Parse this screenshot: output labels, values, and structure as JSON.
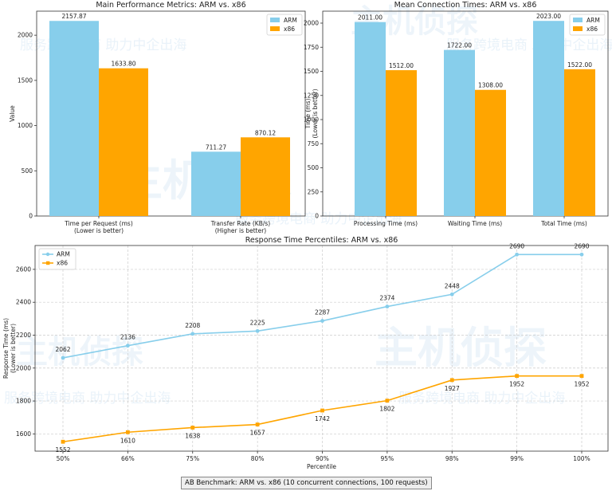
{
  "watermark": {
    "brand": "主机侦探",
    "slogan": "服务跨境电商 助力中企出海"
  },
  "footer_caption": "AB Benchmark: ARM vs. x86 (10 concurrent connections, 100 requests)",
  "colors": {
    "arm": "#87ceeb",
    "x86": "#ffa500"
  },
  "chart_data": [
    {
      "type": "bar",
      "title": "Main Performance Metrics: ARM vs. x86",
      "ylabel": "Value",
      "categories": [
        "Time per Request (ms)\n(Lower is better)",
        "Transfer Rate (KB/s)\n(Higher is better)"
      ],
      "series": [
        {
          "name": "ARM",
          "values": [
            2157.87,
            711.27
          ],
          "labels": [
            "2157.87",
            "711.27"
          ]
        },
        {
          "name": "x86",
          "values": [
            1633.8,
            870.12
          ],
          "labels": [
            "1633.80",
            "870.12"
          ]
        }
      ],
      "ylim": [
        0,
        2265.8
      ],
      "yticks": [
        0,
        500,
        1000,
        1500,
        2000
      ],
      "legend": "top-right"
    },
    {
      "type": "bar",
      "title": "Mean Connection Times: ARM vs. x86",
      "ylabel": "Time (ms)\n(Lower is better)",
      "categories": [
        "Processing Time (ms)",
        "Waiting Time (ms)",
        "Total Time (ms)"
      ],
      "series": [
        {
          "name": "ARM",
          "values": [
            2011,
            1722,
            2023
          ],
          "labels": [
            "2011.00",
            "1722.00",
            "2023.00"
          ]
        },
        {
          "name": "x86",
          "values": [
            1512,
            1308,
            1522
          ],
          "labels": [
            "1512.00",
            "1308.00",
            "1522.00"
          ]
        }
      ],
      "ylim": [
        0,
        2124
      ],
      "yticks": [
        0,
        250,
        500,
        750,
        1000,
        1250,
        1500,
        1750,
        2000
      ],
      "legend": "top-right"
    },
    {
      "type": "line",
      "title": "Response Time Percentiles: ARM vs. x86",
      "xlabel": "Percentile",
      "ylabel": "Response Time (ms)\n(Lower is better)",
      "categories": [
        "50%",
        "66%",
        "75%",
        "80%",
        "90%",
        "95%",
        "98%",
        "99%",
        "100%"
      ],
      "series": [
        {
          "name": "ARM",
          "values": [
            2062,
            2136,
            2208,
            2225,
            2287,
            2374,
            2448,
            2690,
            2690
          ]
        },
        {
          "name": "x86",
          "values": [
            1552,
            1610,
            1638,
            1657,
            1742,
            1802,
            1927,
            1952,
            1952
          ]
        }
      ],
      "ylim": [
        1495,
        2745
      ],
      "yticks": [
        1600,
        1800,
        2000,
        2200,
        2400,
        2600
      ],
      "grid": true,
      "legend": "top-left"
    }
  ]
}
